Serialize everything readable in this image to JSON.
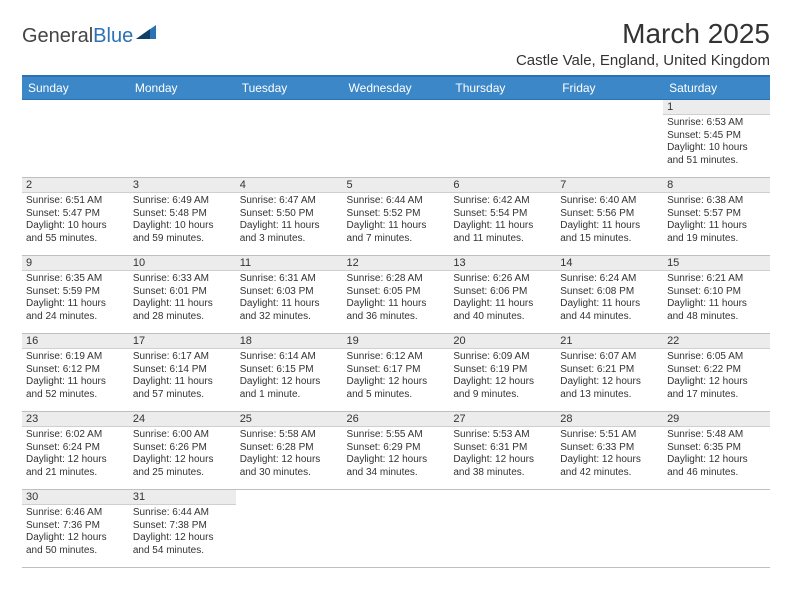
{
  "logo": {
    "part1": "General",
    "part2": "Blue"
  },
  "title": "March 2025",
  "location": "Castle Vale, England, United Kingdom",
  "colors": {
    "header_bg": "#3b87c8",
    "header_text": "#ffffff",
    "border_top": "#2a72b5",
    "daynum_bg": "#ececec",
    "logo_blue": "#2a72b5"
  },
  "weekdays": [
    "Sunday",
    "Monday",
    "Tuesday",
    "Wednesday",
    "Thursday",
    "Friday",
    "Saturday"
  ],
  "weeks": [
    [
      null,
      null,
      null,
      null,
      null,
      null,
      {
        "n": "1",
        "sr": "6:53 AM",
        "ss": "5:45 PM",
        "dl": "10 hours and 51 minutes."
      }
    ],
    [
      {
        "n": "2",
        "sr": "6:51 AM",
        "ss": "5:47 PM",
        "dl": "10 hours and 55 minutes."
      },
      {
        "n": "3",
        "sr": "6:49 AM",
        "ss": "5:48 PM",
        "dl": "10 hours and 59 minutes."
      },
      {
        "n": "4",
        "sr": "6:47 AM",
        "ss": "5:50 PM",
        "dl": "11 hours and 3 minutes."
      },
      {
        "n": "5",
        "sr": "6:44 AM",
        "ss": "5:52 PM",
        "dl": "11 hours and 7 minutes."
      },
      {
        "n": "6",
        "sr": "6:42 AM",
        "ss": "5:54 PM",
        "dl": "11 hours and 11 minutes."
      },
      {
        "n": "7",
        "sr": "6:40 AM",
        "ss": "5:56 PM",
        "dl": "11 hours and 15 minutes."
      },
      {
        "n": "8",
        "sr": "6:38 AM",
        "ss": "5:57 PM",
        "dl": "11 hours and 19 minutes."
      }
    ],
    [
      {
        "n": "9",
        "sr": "6:35 AM",
        "ss": "5:59 PM",
        "dl": "11 hours and 24 minutes."
      },
      {
        "n": "10",
        "sr": "6:33 AM",
        "ss": "6:01 PM",
        "dl": "11 hours and 28 minutes."
      },
      {
        "n": "11",
        "sr": "6:31 AM",
        "ss": "6:03 PM",
        "dl": "11 hours and 32 minutes."
      },
      {
        "n": "12",
        "sr": "6:28 AM",
        "ss": "6:05 PM",
        "dl": "11 hours and 36 minutes."
      },
      {
        "n": "13",
        "sr": "6:26 AM",
        "ss": "6:06 PM",
        "dl": "11 hours and 40 minutes."
      },
      {
        "n": "14",
        "sr": "6:24 AM",
        "ss": "6:08 PM",
        "dl": "11 hours and 44 minutes."
      },
      {
        "n": "15",
        "sr": "6:21 AM",
        "ss": "6:10 PM",
        "dl": "11 hours and 48 minutes."
      }
    ],
    [
      {
        "n": "16",
        "sr": "6:19 AM",
        "ss": "6:12 PM",
        "dl": "11 hours and 52 minutes."
      },
      {
        "n": "17",
        "sr": "6:17 AM",
        "ss": "6:14 PM",
        "dl": "11 hours and 57 minutes."
      },
      {
        "n": "18",
        "sr": "6:14 AM",
        "ss": "6:15 PM",
        "dl": "12 hours and 1 minute."
      },
      {
        "n": "19",
        "sr": "6:12 AM",
        "ss": "6:17 PM",
        "dl": "12 hours and 5 minutes."
      },
      {
        "n": "20",
        "sr": "6:09 AM",
        "ss": "6:19 PM",
        "dl": "12 hours and 9 minutes."
      },
      {
        "n": "21",
        "sr": "6:07 AM",
        "ss": "6:21 PM",
        "dl": "12 hours and 13 minutes."
      },
      {
        "n": "22",
        "sr": "6:05 AM",
        "ss": "6:22 PM",
        "dl": "12 hours and 17 minutes."
      }
    ],
    [
      {
        "n": "23",
        "sr": "6:02 AM",
        "ss": "6:24 PM",
        "dl": "12 hours and 21 minutes."
      },
      {
        "n": "24",
        "sr": "6:00 AM",
        "ss": "6:26 PM",
        "dl": "12 hours and 25 minutes."
      },
      {
        "n": "25",
        "sr": "5:58 AM",
        "ss": "6:28 PM",
        "dl": "12 hours and 30 minutes."
      },
      {
        "n": "26",
        "sr": "5:55 AM",
        "ss": "6:29 PM",
        "dl": "12 hours and 34 minutes."
      },
      {
        "n": "27",
        "sr": "5:53 AM",
        "ss": "6:31 PM",
        "dl": "12 hours and 38 minutes."
      },
      {
        "n": "28",
        "sr": "5:51 AM",
        "ss": "6:33 PM",
        "dl": "12 hours and 42 minutes."
      },
      {
        "n": "29",
        "sr": "5:48 AM",
        "ss": "6:35 PM",
        "dl": "12 hours and 46 minutes."
      }
    ],
    [
      {
        "n": "30",
        "sr": "6:46 AM",
        "ss": "7:36 PM",
        "dl": "12 hours and 50 minutes."
      },
      {
        "n": "31",
        "sr": "6:44 AM",
        "ss": "7:38 PM",
        "dl": "12 hours and 54 minutes."
      },
      null,
      null,
      null,
      null,
      null
    ]
  ],
  "labels": {
    "sunrise": "Sunrise:",
    "sunset": "Sunset:",
    "daylight": "Daylight:"
  }
}
